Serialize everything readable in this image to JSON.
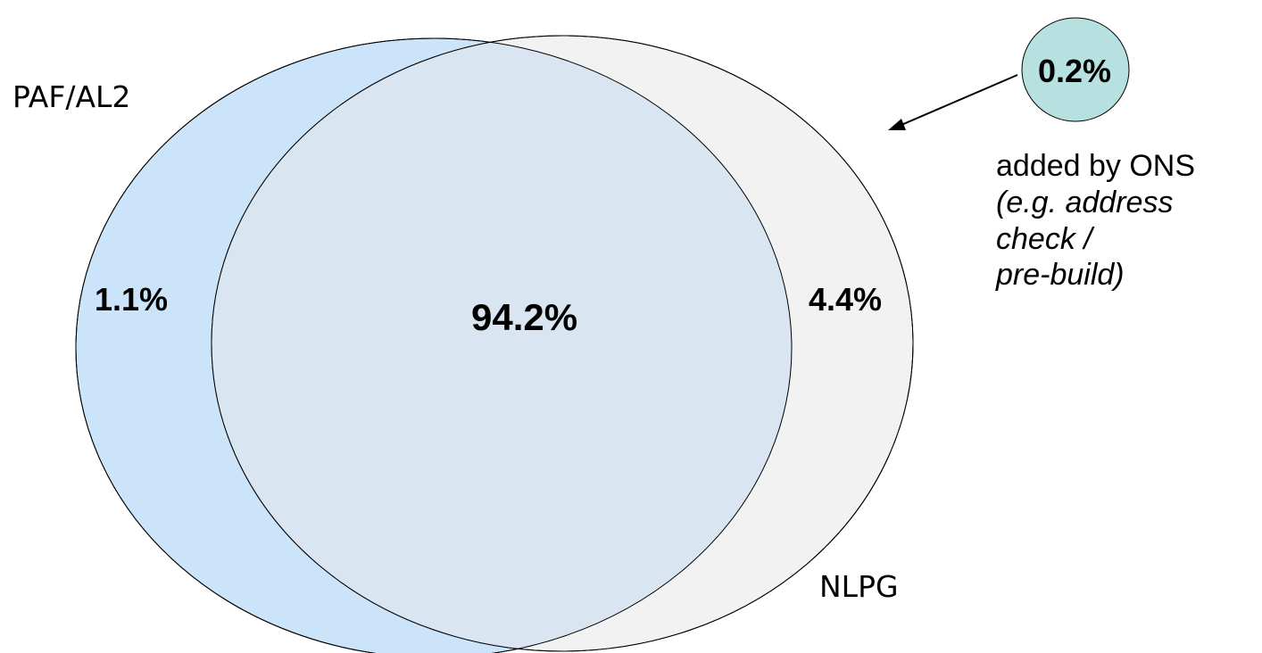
{
  "diagram": {
    "type": "venn",
    "sets": {
      "paf": {
        "name": "PAF/AL2",
        "fill": "#cce4fa"
      },
      "nlpg": {
        "name": "NLPG",
        "fill": "#f2f2f2"
      }
    },
    "regions": {
      "paf_only": "1.1%",
      "overlap": "94.2%",
      "nlpg_only": "4.4%"
    },
    "overlap_fill": "#d9e6f2",
    "ons_added": {
      "value": "0.2%",
      "fill": "#b7e0e0",
      "label": "added by ONS",
      "example_lines": [
        "(e.g. address",
        "check /",
        "pre-build)"
      ]
    },
    "stroke_color": "#000000"
  }
}
